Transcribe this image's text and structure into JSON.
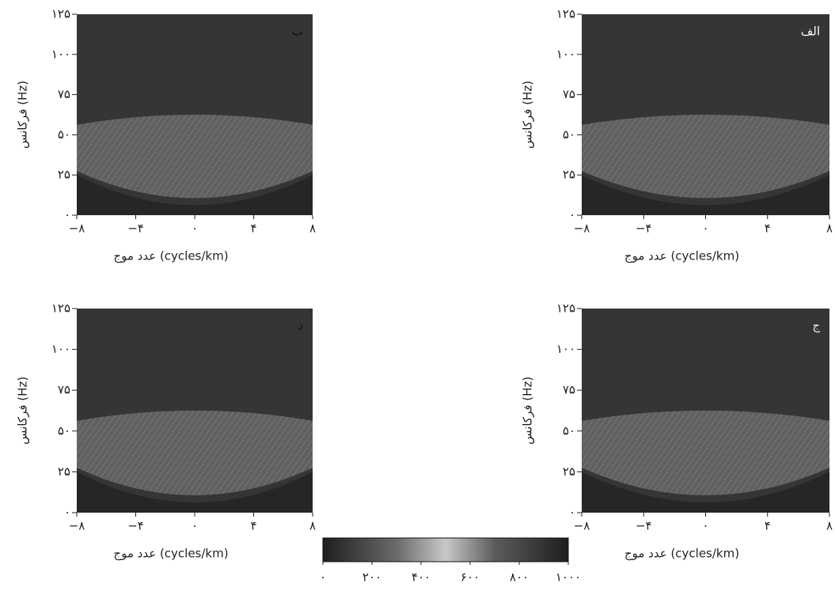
{
  "chart_data": [
    {
      "type": "image",
      "panel_label": "ب",
      "xlabel": "عدد موج (cycles/km)",
      "ylabel": "فرکانس (Hz)",
      "xlim": [
        -8,
        8
      ],
      "ylim": [
        0,
        125
      ],
      "xticks": [
        {
          "value": -8,
          "label": "−۸"
        },
        {
          "value": -4,
          "label": "−۴"
        },
        {
          "value": 0,
          "label": "۰"
        },
        {
          "value": 4,
          "label": "۴"
        },
        {
          "value": 8,
          "label": "۸"
        }
      ],
      "yticks": [
        {
          "value": 0,
          "label": "۰"
        },
        {
          "value": 25,
          "label": "۲۵"
        },
        {
          "value": 50,
          "label": "۵۰"
        },
        {
          "value": 75,
          "label": "۷۵"
        },
        {
          "value": 100,
          "label": "۱۰۰"
        },
        {
          "value": 125,
          "label": "۱۲۵"
        }
      ]
    },
    {
      "type": "image",
      "panel_label": "الف",
      "xlabel": "عدد موج (cycles/km)",
      "ylabel": "فرکانس (Hz)",
      "xlim": [
        -8,
        8
      ],
      "ylim": [
        0,
        125
      ],
      "xticks": [
        {
          "value": -8,
          "label": "−۸"
        },
        {
          "value": -4,
          "label": "−۴"
        },
        {
          "value": 0,
          "label": "۰"
        },
        {
          "value": 4,
          "label": "۴"
        },
        {
          "value": 8,
          "label": "۸"
        }
      ],
      "yticks": [
        {
          "value": 0,
          "label": "۰"
        },
        {
          "value": 25,
          "label": "۲۵"
        },
        {
          "value": 50,
          "label": "۵۰"
        },
        {
          "value": 75,
          "label": "۷۵"
        },
        {
          "value": 100,
          "label": "۱۰۰"
        },
        {
          "value": 125,
          "label": "۱۲۵"
        }
      ]
    },
    {
      "type": "image",
      "panel_label": "د",
      "xlabel": "عدد موج (cycles/km)",
      "ylabel": "فرکانس (Hz)",
      "xlim": [
        -8,
        8
      ],
      "ylim": [
        0,
        125
      ],
      "xticks": [
        {
          "value": -8,
          "label": "−۸"
        },
        {
          "value": -4,
          "label": "−۴"
        },
        {
          "value": 0,
          "label": "۰"
        },
        {
          "value": 4,
          "label": "۴"
        },
        {
          "value": 8,
          "label": "۸"
        }
      ],
      "yticks": [
        {
          "value": 0,
          "label": "۰"
        },
        {
          "value": 25,
          "label": "۲۵"
        },
        {
          "value": 50,
          "label": "۵۰"
        },
        {
          "value": 75,
          "label": "۷۵"
        },
        {
          "value": 100,
          "label": "۱۰۰"
        },
        {
          "value": 125,
          "label": "۱۲۵"
        }
      ]
    },
    {
      "type": "image",
      "panel_label": "ج",
      "xlabel": "عدد موج (cycles/km)",
      "ylabel": "فرکانس (Hz)",
      "xlim": [
        -8,
        8
      ],
      "ylim": [
        0,
        125
      ],
      "xticks": [
        {
          "value": -8,
          "label": "−۸"
        },
        {
          "value": -4,
          "label": "−۴"
        },
        {
          "value": 0,
          "label": "۰"
        },
        {
          "value": 4,
          "label": "۴"
        },
        {
          "value": 8,
          "label": "۸"
        }
      ],
      "yticks": [
        {
          "value": 0,
          "label": "۰"
        },
        {
          "value": 25,
          "label": "۲۵"
        },
        {
          "value": 50,
          "label": "۵۰"
        },
        {
          "value": 75,
          "label": "۷۵"
        },
        {
          "value": 100,
          "label": "۱۰۰"
        },
        {
          "value": 125,
          "label": "۱۲۵"
        }
      ]
    }
  ],
  "colorbar": {
    "lim": [
      0,
      1000
    ],
    "ticks": [
      {
        "value": 0,
        "label": "۰"
      },
      {
        "value": 200,
        "label": "۲۰۰"
      },
      {
        "value": 400,
        "label": "۴۰۰"
      },
      {
        "value": 600,
        "label": "۶۰۰"
      },
      {
        "value": 800,
        "label": "۸۰۰"
      },
      {
        "value": 1000,
        "label": "۱۰۰۰"
      }
    ]
  }
}
